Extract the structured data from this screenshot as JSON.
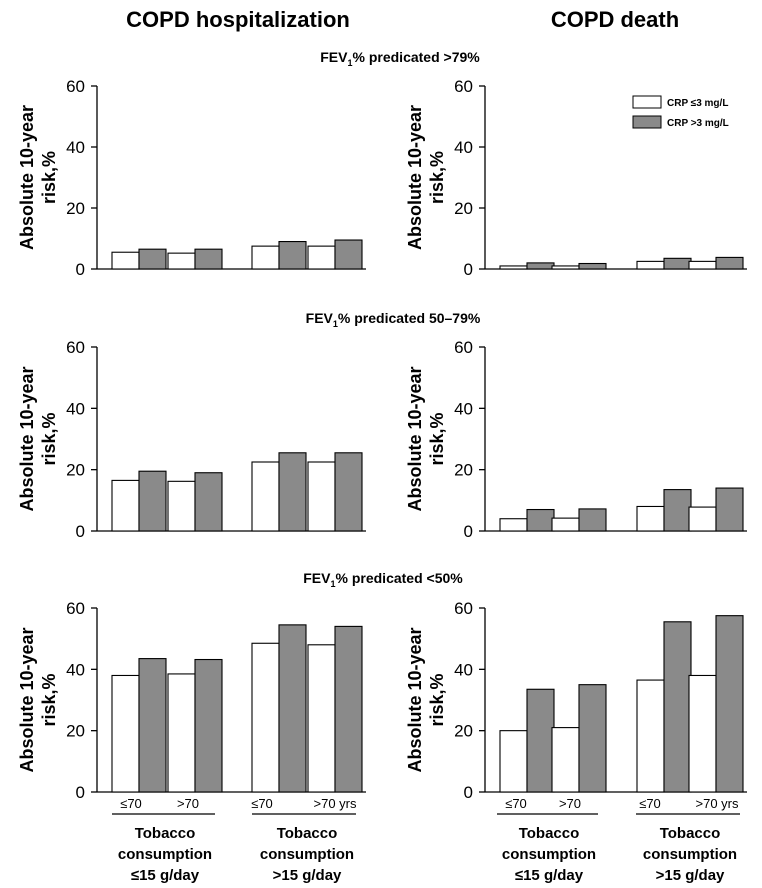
{
  "columns": [
    {
      "title": "COPD hospitalization"
    },
    {
      "title": "COPD death"
    }
  ],
  "rows": [
    {
      "prefix": "FEV",
      "sub": "1",
      "suffix": "% predicated >79%"
    },
    {
      "prefix": "FEV",
      "sub": "1",
      "suffix": "% predicated 50–79%"
    },
    {
      "prefix": "FEV",
      "sub": "1",
      "suffix": "% predicated <50%"
    }
  ],
  "ylabel_line1": "Absolute 10-year",
  "ylabel_line2": "risk,%",
  "legend": [
    {
      "label": "CRP ≤3 mg/L",
      "color": "#ffffff"
    },
    {
      "label": "CRP >3 mg/L",
      "color": "#8a8a8a"
    }
  ],
  "age_labels": [
    "≤70",
    ">70",
    "≤70",
    ">70 yrs"
  ],
  "tobacco_groups": [
    [
      "Tobacco",
      "consumption",
      "≤15 g/day"
    ],
    [
      "Tobacco",
      "consumption",
      ">15 g/day"
    ]
  ],
  "chart_data": [
    {
      "type": "bar",
      "panel": "COPD hospitalization, FEV1% predicated >79%",
      "categories": [
        "≤15 g/day ≤70",
        "≤15 g/day >70",
        "≤70",
        ">70 yrs"
      ],
      "series": [
        {
          "name": "CRP ≤3 mg/L",
          "values": [
            5.5,
            5.2,
            7.5,
            7.5
          ]
        },
        {
          "name": "CRP >3 mg/L",
          "values": [
            6.5,
            6.5,
            9,
            9.5
          ]
        }
      ],
      "ylim": [
        0,
        60
      ],
      "yticks": [
        0,
        20,
        40,
        60
      ]
    },
    {
      "type": "bar",
      "panel": "COPD death, FEV1% predicated >79%",
      "categories": [
        "≤15 g/day ≤70",
        "≤15 g/day >70",
        "≤70",
        ">70 yrs"
      ],
      "series": [
        {
          "name": "CRP ≤3 mg/L",
          "values": [
            1,
            1,
            2.5,
            2.5
          ]
        },
        {
          "name": "CRP >3 mg/L",
          "values": [
            2,
            1.8,
            3.5,
            3.8
          ]
        }
      ],
      "ylim": [
        0,
        60
      ],
      "yticks": [
        0,
        20,
        40,
        60
      ]
    },
    {
      "type": "bar",
      "panel": "COPD hospitalization, FEV1% predicated 50–79%",
      "categories": [
        "≤15 g/day ≤70",
        "≤15 g/day >70",
        "≤70",
        ">70 yrs"
      ],
      "series": [
        {
          "name": "CRP ≤3 mg/L",
          "values": [
            16.5,
            16.2,
            22.5,
            22.5
          ]
        },
        {
          "name": "CRP >3 mg/L",
          "values": [
            19.5,
            19,
            25.5,
            25.5
          ]
        }
      ],
      "ylim": [
        0,
        60
      ],
      "yticks": [
        0,
        20,
        40,
        60
      ]
    },
    {
      "type": "bar",
      "panel": "COPD death, FEV1% predicated 50–79%",
      "categories": [
        "≤15 g/day ≤70",
        "≤15 g/day >70",
        "≤70",
        ">70 yrs"
      ],
      "series": [
        {
          "name": "CRP ≤3 mg/L",
          "values": [
            4,
            4.2,
            8,
            7.8
          ]
        },
        {
          "name": "CRP >3 mg/L",
          "values": [
            7,
            7.2,
            13.5,
            14
          ]
        }
      ],
      "ylim": [
        0,
        60
      ],
      "yticks": [
        0,
        20,
        40,
        60
      ]
    },
    {
      "type": "bar",
      "panel": "COPD hospitalization, FEV1% predicated <50%",
      "categories": [
        "≤15 g/day ≤70",
        "≤15 g/day >70",
        "≤70",
        ">70 yrs"
      ],
      "series": [
        {
          "name": "CRP ≤3 mg/L",
          "values": [
            38,
            38.5,
            48.5,
            48
          ]
        },
        {
          "name": "CRP >3 mg/L",
          "values": [
            43.5,
            43.2,
            54.5,
            54
          ]
        }
      ],
      "ylim": [
        0,
        60
      ],
      "yticks": [
        0,
        20,
        40,
        60
      ]
    },
    {
      "type": "bar",
      "panel": "COPD death, FEV1% predicated <50%",
      "categories": [
        "≤15 g/day ≤70",
        "≤15 g/day >70",
        "≤70",
        ">70 yrs"
      ],
      "series": [
        {
          "name": "CRP ≤3 mg/L",
          "values": [
            20,
            21,
            36.5,
            38
          ]
        },
        {
          "name": "CRP >3 mg/L",
          "values": [
            33.5,
            35,
            55.5,
            57.5
          ]
        }
      ],
      "ylim": [
        0,
        60
      ],
      "yticks": [
        0,
        20,
        40,
        60
      ]
    }
  ]
}
